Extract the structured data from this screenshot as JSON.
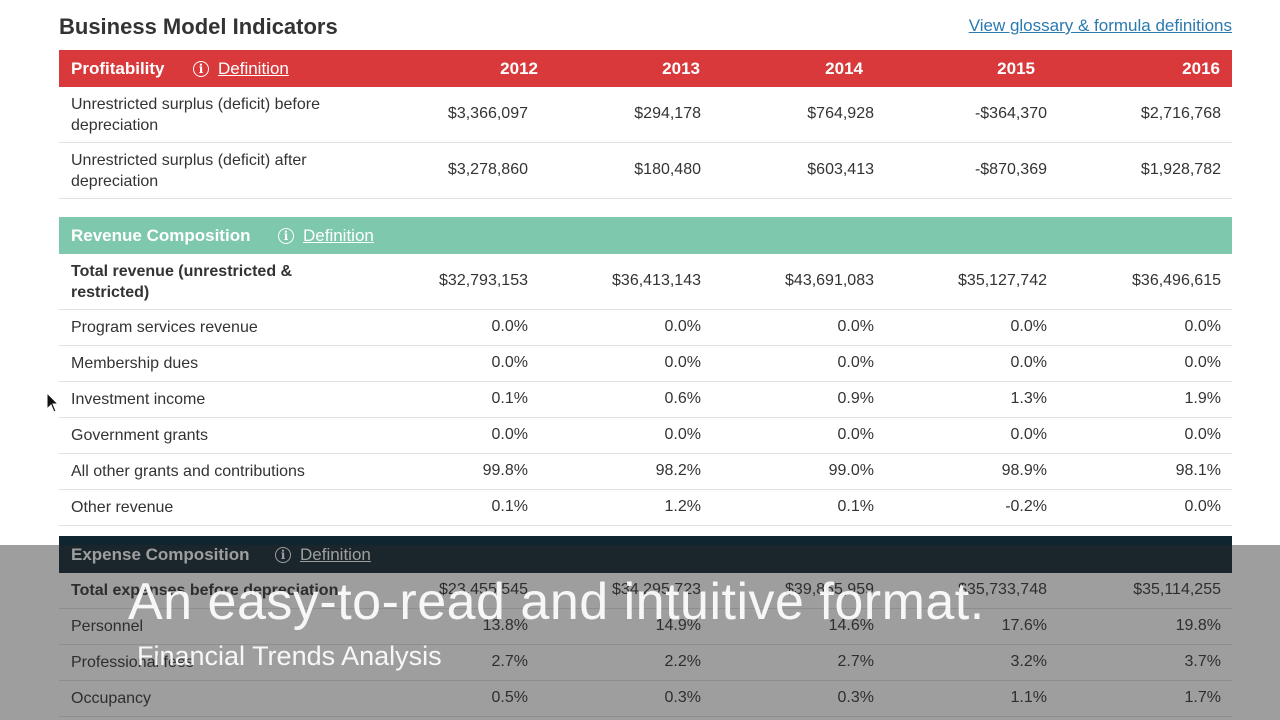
{
  "header": {
    "title": "Business Model Indicators",
    "glossary_link": "View glossary & formula definitions"
  },
  "years": [
    "2012",
    "2013",
    "2014",
    "2015",
    "2016"
  ],
  "definition_label": "Definition",
  "profitability": {
    "title": "Profitability",
    "color": "#d9393a",
    "rows": [
      {
        "label": "Unrestricted surplus (deficit) before",
        "label2": "depreciation",
        "values": [
          "$3,366,097",
          "$294,178",
          "$764,928",
          "-$364,370",
          "$2,716,768"
        ]
      },
      {
        "label": "Unrestricted surplus (deficit) after",
        "label2": "depreciation",
        "values": [
          "$3,278,860",
          "$180,480",
          "$603,413",
          "-$870,369",
          "$1,928,782"
        ]
      }
    ]
  },
  "revenue": {
    "title": "Revenue Composition",
    "color": "#7ec8ad",
    "rows": [
      {
        "label": "Total revenue (unrestricted &",
        "label2": "restricted)",
        "values": [
          "$32,793,153",
          "$36,413,143",
          "$43,691,083",
          "$35,127,742",
          "$36,496,615"
        ]
      },
      {
        "label": "Program services revenue",
        "values": [
          "0.0%",
          "0.0%",
          "0.0%",
          "0.0%",
          "0.0%"
        ]
      },
      {
        "label": "Membership dues",
        "values": [
          "0.0%",
          "0.0%",
          "0.0%",
          "0.0%",
          "0.0%"
        ]
      },
      {
        "label": "Investment income",
        "values": [
          "0.1%",
          "0.6%",
          "0.9%",
          "1.3%",
          "1.9%"
        ]
      },
      {
        "label": "Government grants",
        "values": [
          "0.0%",
          "0.0%",
          "0.0%",
          "0.0%",
          "0.0%"
        ]
      },
      {
        "label": "All other grants and contributions",
        "values": [
          "99.8%",
          "98.2%",
          "99.0%",
          "98.9%",
          "98.1%"
        ]
      },
      {
        "label": "Other revenue",
        "values": [
          "0.1%",
          "1.2%",
          "0.1%",
          "-0.2%",
          "0.0%"
        ]
      }
    ]
  },
  "expense": {
    "title": "Expense Composition",
    "color": "#0f2530",
    "rows": [
      {
        "label": "Total expenses before depreciation",
        "values": [
          "$23,455,545",
          "$34,295,723",
          "$39,865,959",
          "$35,733,748",
          "$35,114,255"
        ]
      },
      {
        "label": "Personnel",
        "values": [
          "13.8%",
          "14.9%",
          "14.6%",
          "17.6%",
          "19.8%"
        ]
      },
      {
        "label": "Professional fees",
        "values": [
          "2.7%",
          "2.2%",
          "2.7%",
          "3.2%",
          "3.7%"
        ]
      },
      {
        "label": "Occupancy",
        "values": [
          "0.5%",
          "0.3%",
          "0.3%",
          "1.1%",
          "1.7%"
        ]
      }
    ]
  },
  "caption": {
    "main": "An easy-to-read and intuitive format.",
    "sub": "Financial Trends Analysis"
  }
}
